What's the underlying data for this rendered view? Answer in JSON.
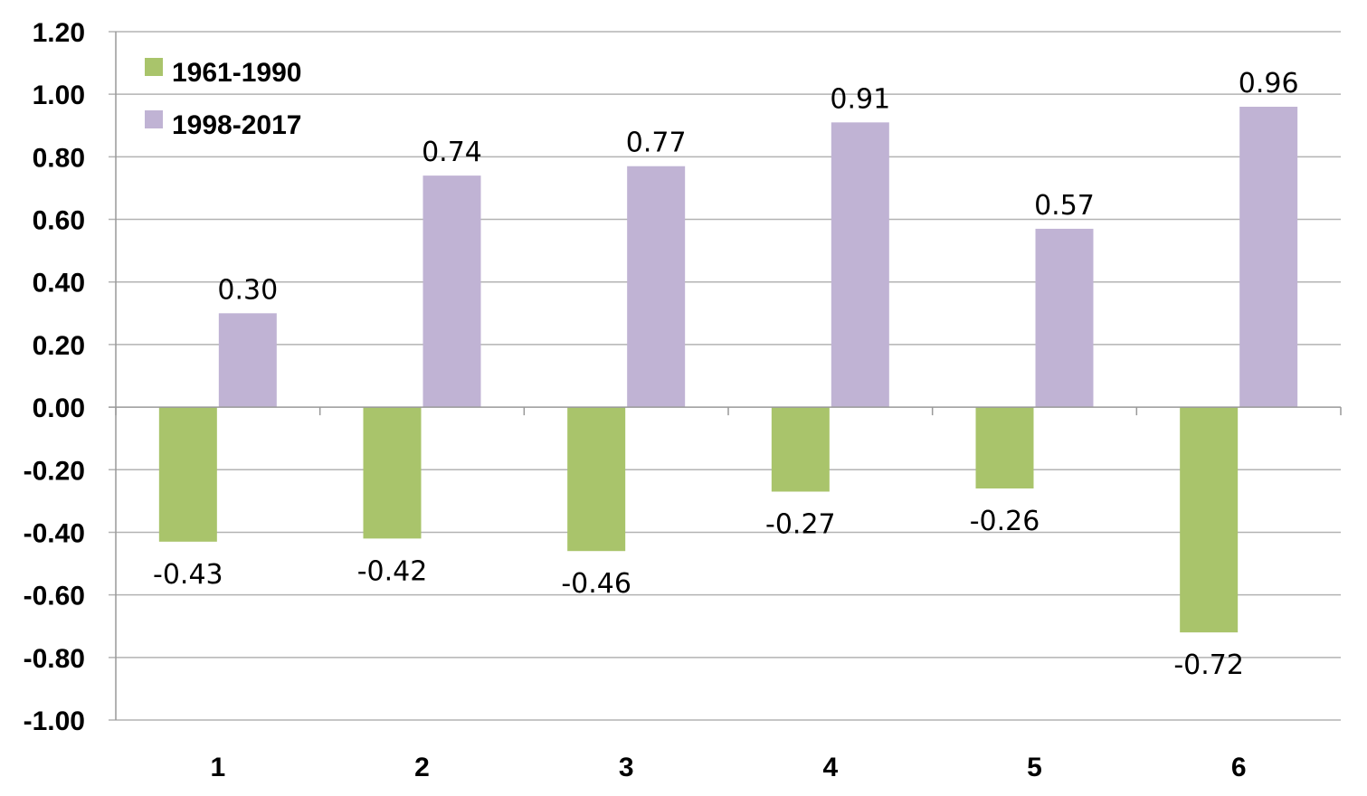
{
  "chart_data": {
    "type": "bar",
    "title": "",
    "xlabel": "",
    "ylabel": "",
    "categories": [
      "1",
      "2",
      "3",
      "4",
      "5",
      "6"
    ],
    "series": [
      {
        "name": "1961-1990",
        "values": [
          -0.43,
          -0.42,
          -0.46,
          -0.27,
          -0.26,
          -0.72
        ],
        "labels": [
          "-0.43",
          "-0.42",
          "-0.46",
          "-0.27",
          "-0.26",
          "-0.72"
        ],
        "color": "#a9c46b"
      },
      {
        "name": "1998-2017",
        "values": [
          0.3,
          0.74,
          0.77,
          0.91,
          0.57,
          0.96
        ],
        "labels": [
          "0.30",
          "0.74",
          "0.77",
          "0.91",
          "0.57",
          "0.96"
        ],
        "color": "#c0b3d4"
      }
    ],
    "ylim": [
      -1.0,
      1.2
    ],
    "yticks": [
      "1.20",
      "1.00",
      "0.80",
      "0.60",
      "0.40",
      "0.20",
      "0.00",
      "-0.20",
      "-0.40",
      "-0.60",
      "-0.80",
      "-1.00"
    ],
    "grid": true,
    "gridline_color": "#b3b3b3",
    "legend_position": "top-left"
  }
}
